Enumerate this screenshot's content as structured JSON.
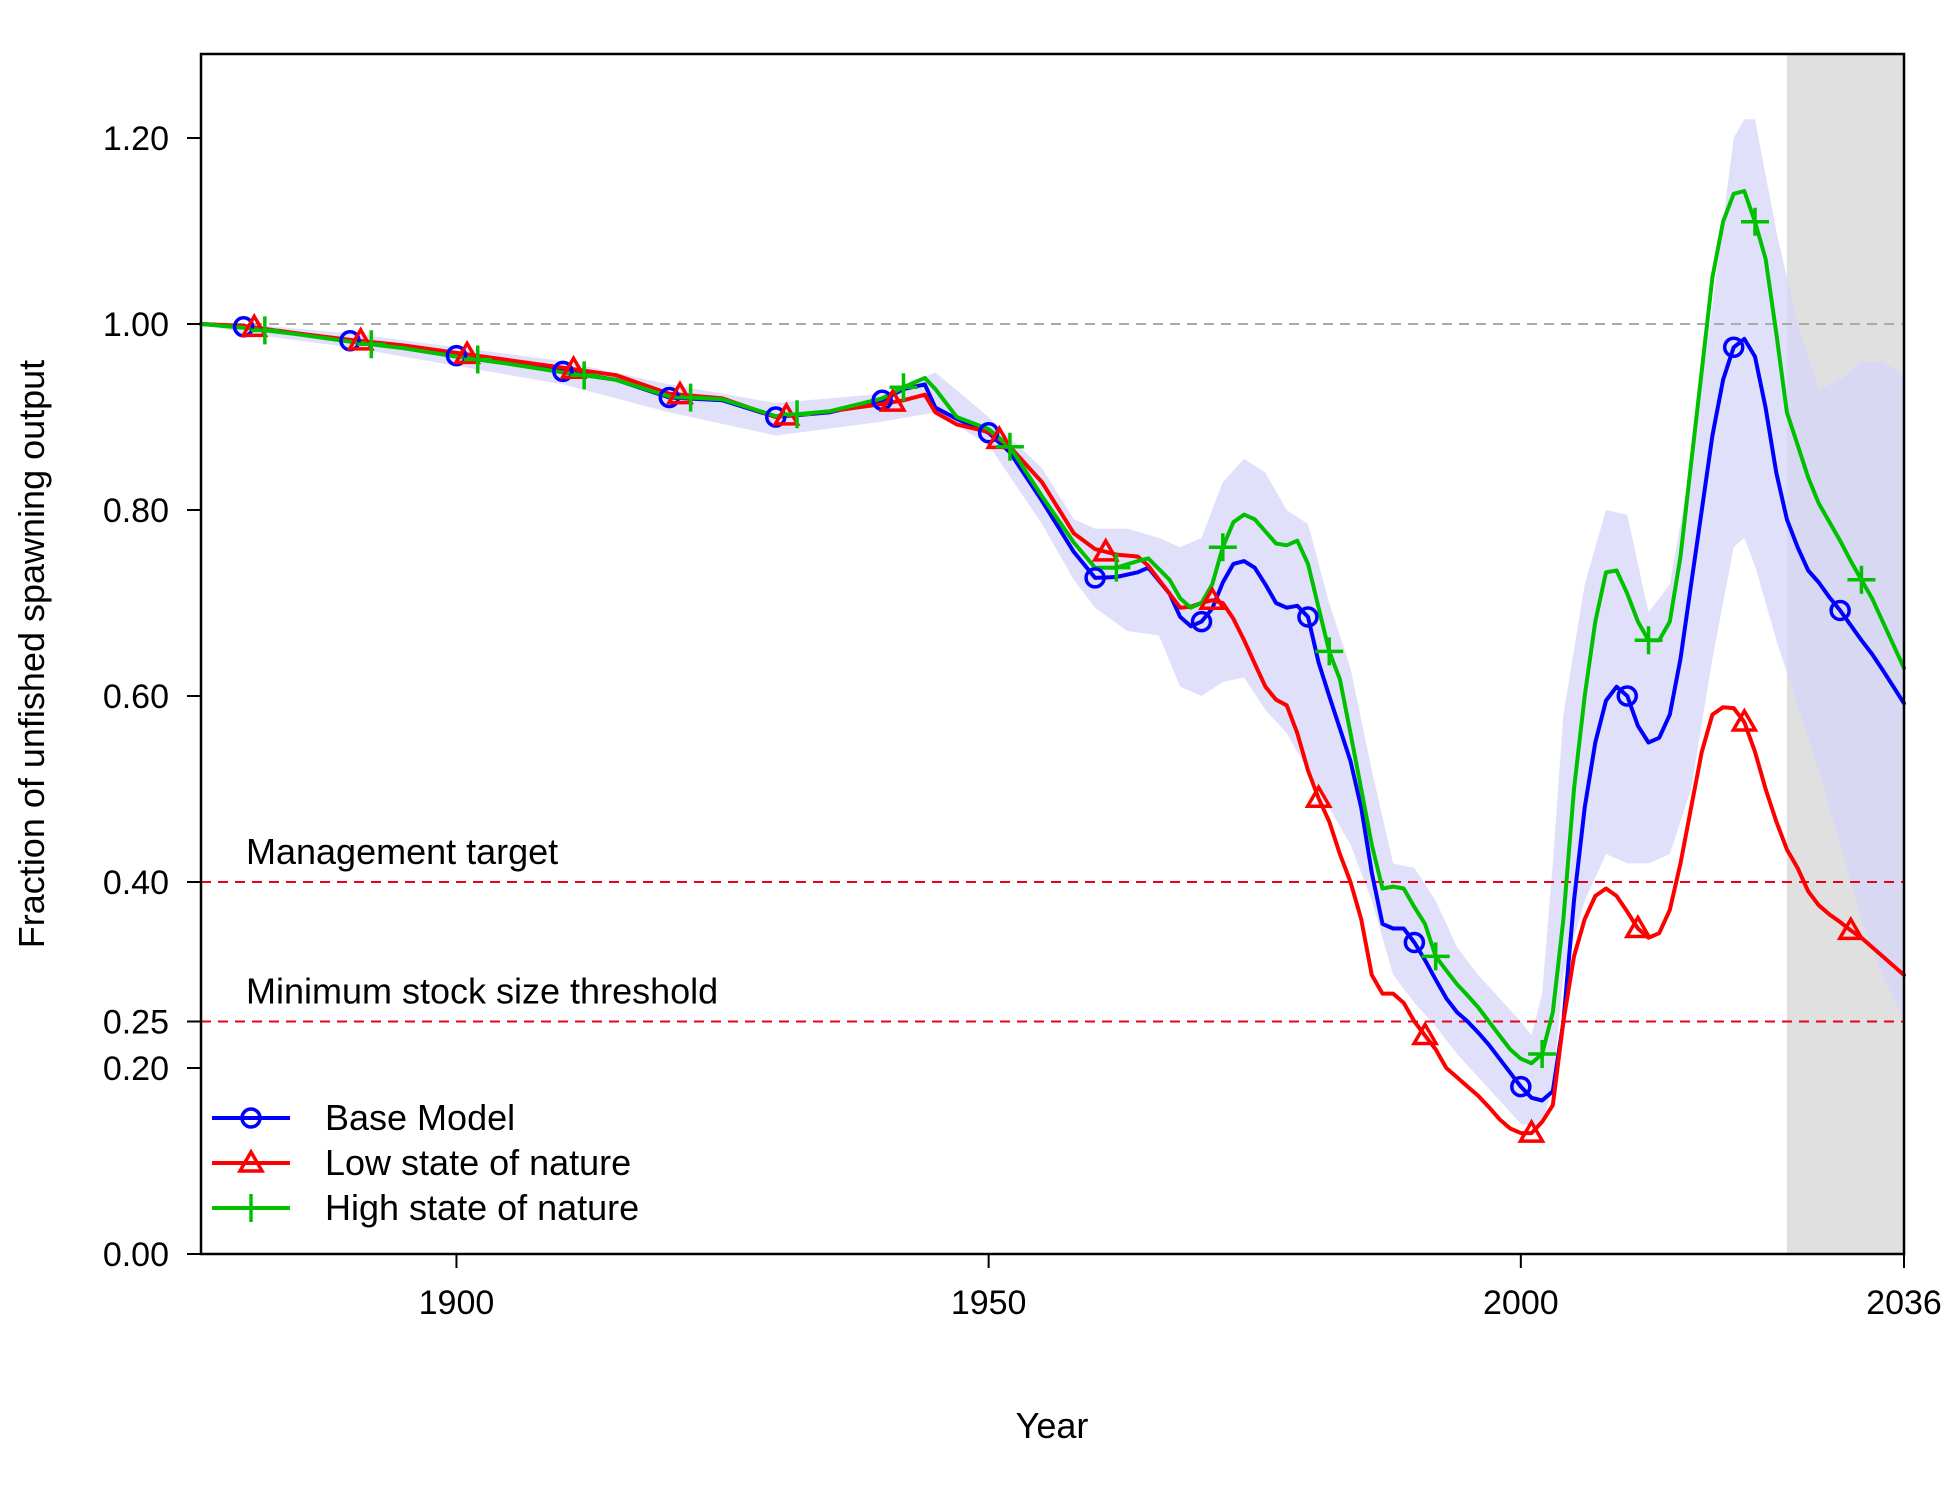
{
  "chart_data": {
    "type": "line",
    "title": "",
    "xlabel": "Year",
    "ylabel": "Fraction of unfished spawning output",
    "xlim": [
      1876,
      2036
    ],
    "ylim": [
      0,
      1.28
    ],
    "x_ticks": [
      1900,
      1950,
      2000,
      2036
    ],
    "x_tick_labels": [
      "1900",
      "1950",
      "2000",
      "2036"
    ],
    "y_ticks": [
      0,
      0.2,
      0.25,
      0.4,
      0.6,
      0.8,
      1.0,
      1.2
    ],
    "y_tick_labels": [
      "0.00",
      "0.20",
      "0.25",
      "0.40",
      "0.60",
      "0.80",
      "1.00",
      "1.20"
    ],
    "projection_start": 2025,
    "projection_color": "#e0e0e0",
    "reference_lines": [
      {
        "y": 1.0,
        "color": "#aaaaaa",
        "label": ""
      },
      {
        "y": 0.4,
        "color": "#e8001c",
        "label": "Management target"
      },
      {
        "y": 0.25,
        "color": "#e8001c",
        "label": "Minimum stock size threshold"
      }
    ],
    "legend_position": "bottom-left",
    "series": [
      {
        "name": "Base Model",
        "color": "#0000ff",
        "marker": "circle",
        "x": [
          1876,
          1880,
          1885,
          1890,
          1895,
          1900,
          1905,
          1910,
          1915,
          1920,
          1925,
          1930,
          1935,
          1940,
          1942,
          1944,
          1945,
          1947,
          1950,
          1952,
          1955,
          1958,
          1960,
          1962,
          1964,
          1965,
          1967,
          1968,
          1969,
          1970,
          1971,
          1972,
          1973,
          1974,
          1975,
          1976,
          1977,
          1978,
          1979,
          1980,
          1981,
          1982,
          1983,
          1984,
          1985,
          1986,
          1987,
          1988,
          1989,
          1990,
          1991,
          1992,
          1993,
          1994,
          1995,
          1996,
          1997,
          1998,
          1999,
          2000,
          2001,
          2002,
          2003,
          2004,
          2005,
          2006,
          2007,
          2008,
          2009,
          2010,
          2011,
          2012,
          2013,
          2014,
          2015,
          2016,
          2017,
          2018,
          2019,
          2020,
          2021,
          2022,
          2023,
          2024,
          2025,
          2026,
          2027,
          2028,
          2029,
          2030,
          2031,
          2032,
          2033,
          2034,
          2035,
          2036
        ],
        "y": [
          1.0,
          0.997,
          0.99,
          0.982,
          0.975,
          0.966,
          0.958,
          0.949,
          0.94,
          0.921,
          0.918,
          0.9,
          0.905,
          0.918,
          0.93,
          0.935,
          0.91,
          0.898,
          0.883,
          0.862,
          0.81,
          0.755,
          0.727,
          0.728,
          0.733,
          0.738,
          0.71,
          0.685,
          0.675,
          0.68,
          0.694,
          0.722,
          0.742,
          0.745,
          0.738,
          0.72,
          0.7,
          0.695,
          0.697,
          0.685,
          0.636,
          0.6,
          0.565,
          0.53,
          0.48,
          0.41,
          0.355,
          0.35,
          0.35,
          0.335,
          0.316,
          0.295,
          0.275,
          0.26,
          0.25,
          0.238,
          0.225,
          0.21,
          0.195,
          0.18,
          0.168,
          0.165,
          0.175,
          0.25,
          0.38,
          0.48,
          0.55,
          0.595,
          0.61,
          0.6,
          0.568,
          0.55,
          0.555,
          0.58,
          0.64,
          0.72,
          0.8,
          0.88,
          0.94,
          0.975,
          0.984,
          0.965,
          0.91,
          0.84,
          0.79,
          0.76,
          0.735,
          0.722,
          0.706,
          0.692,
          0.676,
          0.66,
          0.645,
          0.628,
          0.61,
          0.592
        ],
        "marker_x": [
          1880,
          1890,
          1900,
          1910,
          1920,
          1930,
          1940,
          1950,
          1960,
          1970,
          1980,
          1990,
          2000,
          2010,
          2020,
          2030
        ]
      },
      {
        "name": "Low state of nature",
        "color": "#ff0000",
        "marker": "triangle",
        "x": [
          1876,
          1880,
          1885,
          1890,
          1895,
          1900,
          1905,
          1910,
          1915,
          1920,
          1925,
          1930,
          1935,
          1940,
          1942,
          1944,
          1945,
          1947,
          1950,
          1952,
          1955,
          1958,
          1960,
          1962,
          1964,
          1965,
          1967,
          1968,
          1969,
          1970,
          1971,
          1972,
          1973,
          1974,
          1975,
          1976,
          1977,
          1978,
          1979,
          1980,
          1981,
          1982,
          1983,
          1984,
          1985,
          1986,
          1987,
          1988,
          1989,
          1990,
          1991,
          1992,
          1993,
          1994,
          1995,
          1996,
          1997,
          1998,
          1999,
          2000,
          2001,
          2002,
          2003,
          2004,
          2005,
          2006,
          2007,
          2008,
          2009,
          2010,
          2011,
          2012,
          2013,
          2014,
          2015,
          2016,
          2017,
          2018,
          2019,
          2020,
          2021,
          2022,
          2023,
          2024,
          2025,
          2026,
          2027,
          2028,
          2029,
          2030,
          2031,
          2032,
          2033,
          2034,
          2035,
          2036
        ],
        "y": [
          1.0,
          0.998,
          0.99,
          0.983,
          0.977,
          0.969,
          0.961,
          0.953,
          0.945,
          0.925,
          0.92,
          0.9,
          0.906,
          0.914,
          0.918,
          0.924,
          0.905,
          0.892,
          0.884,
          0.868,
          0.83,
          0.775,
          0.758,
          0.752,
          0.75,
          0.74,
          0.71,
          0.695,
          0.696,
          0.7,
          0.703,
          0.7,
          0.683,
          0.66,
          0.635,
          0.61,
          0.596,
          0.59,
          0.56,
          0.52,
          0.49,
          0.465,
          0.43,
          0.4,
          0.36,
          0.3,
          0.28,
          0.28,
          0.27,
          0.25,
          0.235,
          0.22,
          0.2,
          0.19,
          0.18,
          0.17,
          0.158,
          0.145,
          0.135,
          0.13,
          0.13,
          0.142,
          0.16,
          0.25,
          0.32,
          0.36,
          0.385,
          0.393,
          0.385,
          0.368,
          0.35,
          0.34,
          0.345,
          0.37,
          0.42,
          0.48,
          0.54,
          0.58,
          0.588,
          0.587,
          0.572,
          0.54,
          0.5,
          0.465,
          0.435,
          0.415,
          0.39,
          0.375,
          0.365,
          0.357,
          0.348,
          0.34,
          0.33,
          0.32,
          0.31,
          0.3
        ],
        "marker_x": [
          1881,
          1891,
          1901,
          1911,
          1921,
          1931,
          1941,
          1951,
          1961,
          1971,
          1981,
          1991,
          2001,
          2011,
          2021,
          2031
        ]
      },
      {
        "name": "High state of nature",
        "color": "#00c000",
        "marker": "plus",
        "x": [
          1876,
          1880,
          1885,
          1890,
          1895,
          1900,
          1905,
          1910,
          1915,
          1920,
          1925,
          1930,
          1935,
          1940,
          1942,
          1944,
          1945,
          1947,
          1950,
          1952,
          1955,
          1958,
          1960,
          1962,
          1964,
          1965,
          1967,
          1968,
          1969,
          1970,
          1971,
          1972,
          1973,
          1974,
          1975,
          1976,
          1977,
          1978,
          1979,
          1980,
          1981,
          1982,
          1983,
          1984,
          1985,
          1986,
          1987,
          1988,
          1989,
          1990,
          1991,
          1992,
          1993,
          1994,
          1995,
          1996,
          1997,
          1998,
          1999,
          2000,
          2001,
          2002,
          2003,
          2004,
          2005,
          2006,
          2007,
          2008,
          2009,
          2010,
          2011,
          2012,
          2013,
          2014,
          2015,
          2016,
          2017,
          2018,
          2019,
          2020,
          2021,
          2022,
          2023,
          2024,
          2025,
          2026,
          2027,
          2028,
          2029,
          2030,
          2031,
          2032,
          2033,
          2034,
          2035,
          2036
        ],
        "y": [
          1.0,
          0.996,
          0.989,
          0.981,
          0.974,
          0.965,
          0.957,
          0.948,
          0.94,
          0.922,
          0.919,
          0.901,
          0.906,
          0.92,
          0.932,
          0.942,
          0.93,
          0.9,
          0.887,
          0.868,
          0.815,
          0.765,
          0.738,
          0.738,
          0.745,
          0.748,
          0.725,
          0.705,
          0.695,
          0.7,
          0.72,
          0.76,
          0.787,
          0.795,
          0.79,
          0.777,
          0.764,
          0.762,
          0.767,
          0.742,
          0.695,
          0.648,
          0.618,
          0.56,
          0.5,
          0.44,
          0.393,
          0.395,
          0.393,
          0.373,
          0.355,
          0.32,
          0.305,
          0.29,
          0.278,
          0.265,
          0.25,
          0.235,
          0.22,
          0.21,
          0.205,
          0.215,
          0.26,
          0.36,
          0.5,
          0.6,
          0.68,
          0.733,
          0.735,
          0.71,
          0.68,
          0.66,
          0.66,
          0.68,
          0.75,
          0.85,
          0.95,
          1.05,
          1.11,
          1.14,
          1.143,
          1.11,
          1.07,
          0.99,
          0.905,
          0.87,
          0.835,
          0.807,
          0.787,
          0.767,
          0.745,
          0.725,
          0.705,
          0.68,
          0.655,
          0.63
        ],
        "marker_x": [
          1882,
          1892,
          1902,
          1912,
          1922,
          1932,
          1942,
          1952,
          1962,
          1972,
          1982,
          1992,
          2002,
          2012,
          2022,
          2032
        ]
      }
    ],
    "confidence_band": {
      "color": "#d6d6fa",
      "x": [
        1876,
        1880,
        1890,
        1900,
        1910,
        1920,
        1930,
        1940,
        1945,
        1950,
        1955,
        1958,
        1960,
        1963,
        1966,
        1968,
        1970,
        1972,
        1974,
        1976,
        1978,
        1980,
        1982,
        1984,
        1986,
        1988,
        1990,
        1992,
        1994,
        1996,
        1998,
        2000,
        2001,
        2002,
        2003,
        2004,
        2006,
        2008,
        2010,
        2012,
        2014,
        2016,
        2018,
        2020,
        2021,
        2022,
        2024,
        2026,
        2028,
        2030,
        2032,
        2034,
        2036
      ],
      "lower": [
        1.0,
        0.99,
        0.975,
        0.955,
        0.935,
        0.905,
        0.88,
        0.895,
        0.905,
        0.87,
        0.785,
        0.725,
        0.695,
        0.67,
        0.665,
        0.61,
        0.6,
        0.615,
        0.62,
        0.585,
        0.56,
        0.52,
        0.48,
        0.44,
        0.38,
        0.3,
        0.27,
        0.245,
        0.215,
        0.19,
        0.165,
        0.14,
        0.138,
        0.14,
        0.18,
        0.3,
        0.38,
        0.43,
        0.42,
        0.42,
        0.43,
        0.5,
        0.64,
        0.76,
        0.77,
        0.74,
        0.66,
        0.59,
        0.52,
        0.44,
        0.36,
        0.3,
        0.25
      ],
      "upper": [
        1.0,
        1.0,
        0.99,
        0.975,
        0.96,
        0.935,
        0.915,
        0.925,
        0.948,
        0.9,
        0.845,
        0.79,
        0.78,
        0.78,
        0.77,
        0.76,
        0.77,
        0.83,
        0.855,
        0.84,
        0.8,
        0.785,
        0.7,
        0.63,
        0.52,
        0.42,
        0.415,
        0.38,
        0.33,
        0.3,
        0.275,
        0.25,
        0.235,
        0.28,
        0.42,
        0.58,
        0.72,
        0.8,
        0.795,
        0.69,
        0.72,
        0.85,
        1.02,
        1.2,
        1.22,
        1.22,
        1.1,
        1.0,
        0.93,
        0.94,
        0.96,
        0.96,
        0.945
      ]
    }
  }
}
